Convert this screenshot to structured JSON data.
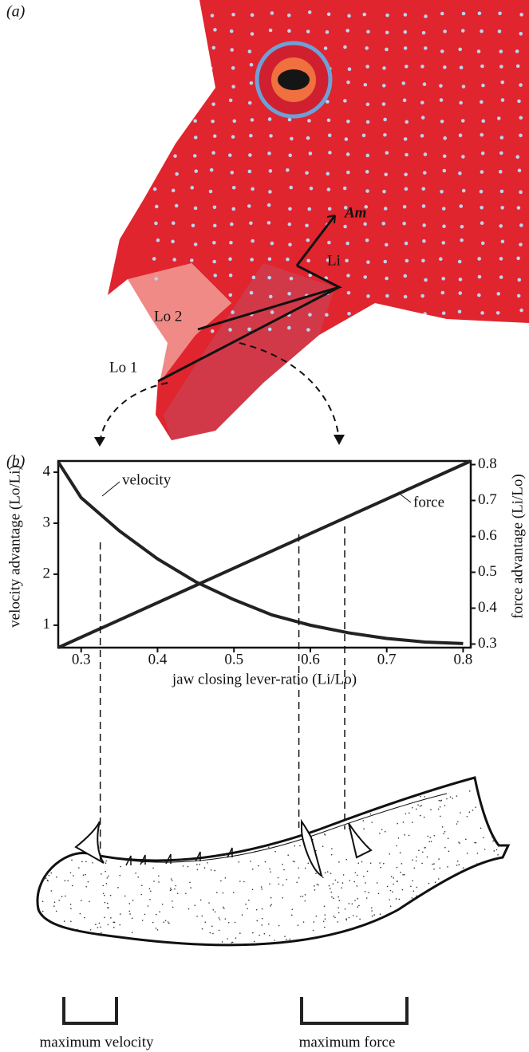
{
  "panel_a": {
    "label": "(a)",
    "levers": {
      "am": "Am",
      "li": "Li",
      "lo2": "Lo 2",
      "lo1": "Lo 1"
    }
  },
  "panel_b": {
    "label": "(b)"
  },
  "chart_data": {
    "type": "line",
    "x_label": "jaw closing lever-ratio (Li/Lo)",
    "y_label": "velocity advantage (Lo/Li)",
    "y2_label": "force advantage (Li/Lo)",
    "xlim": [
      0.27,
      0.81
    ],
    "xticks": [
      0.3,
      0.4,
      0.5,
      0.6,
      0.7,
      0.8
    ],
    "ylim": [
      0.56,
      4.22
    ],
    "yticks": [
      1,
      2,
      3,
      4
    ],
    "y2lim": [
      0.29,
      0.81
    ],
    "y2ticks": [
      0.3,
      0.4,
      0.5,
      0.6,
      0.7,
      0.8
    ],
    "series": [
      {
        "name": "velocity",
        "color": "#222222",
        "x": [
          0.27,
          0.3,
          0.35,
          0.4,
          0.45,
          0.5,
          0.55,
          0.6,
          0.65,
          0.7,
          0.75,
          0.8
        ],
        "values": [
          4.2,
          3.5,
          2.85,
          2.3,
          1.85,
          1.5,
          1.2,
          1.0,
          0.85,
          0.74,
          0.67,
          0.64
        ]
      },
      {
        "name": "force",
        "color": "#222222",
        "axis": "y2",
        "x": [
          0.27,
          0.81
        ],
        "values": [
          0.29,
          0.81
        ]
      }
    ],
    "reference_lines": [
      0.325,
      0.585,
      0.645
    ]
  },
  "jaw": {
    "max_velocity": "maximum velocity",
    "max_force": "maximum force"
  }
}
